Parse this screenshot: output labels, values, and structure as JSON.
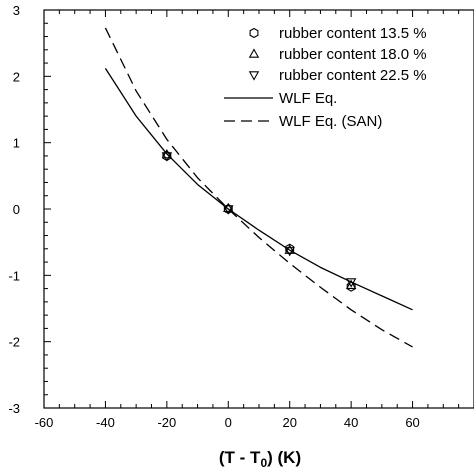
{
  "chart_data": {
    "type": "scatter",
    "title": "",
    "xlabel": "(T - T",
    "xlabel_sub": "0",
    "xlabel_suffix": ") (K)",
    "ylabel": "",
    "xlim": [
      -60,
      80
    ],
    "ylim": [
      -3,
      3
    ],
    "xticks": [
      -60,
      -40,
      -20,
      0,
      20,
      40,
      60
    ],
    "yticks": [
      -3,
      -2,
      -1,
      0,
      1,
      2,
      3
    ],
    "grid": false,
    "legend_position": "top-right",
    "series": [
      {
        "name": "rubber content 13.5 %",
        "kind": "points",
        "marker": "hexagon",
        "x": [
          -20,
          0,
          20,
          40
        ],
        "y": [
          0.8,
          0.0,
          -0.6,
          -1.17
        ]
      },
      {
        "name": "rubber content 18.0 %",
        "kind": "points",
        "marker": "triangle-up",
        "x": [
          -20,
          0,
          20,
          40
        ],
        "y": [
          0.82,
          0.01,
          -0.62,
          -1.15
        ]
      },
      {
        "name": "rubber content 22.5 %",
        "kind": "points",
        "marker": "triangle-down",
        "x": [
          -20,
          0,
          20,
          40
        ],
        "y": [
          0.8,
          0.0,
          -0.63,
          -1.1
        ]
      },
      {
        "name": "WLF Eq.",
        "kind": "line",
        "style": "solid",
        "x": [
          -40,
          -30,
          -20,
          -10,
          0,
          10,
          20,
          30,
          40,
          50,
          60
        ],
        "y": [
          2.12,
          1.4,
          0.83,
          0.37,
          0.0,
          -0.32,
          -0.62,
          -0.88,
          -1.1,
          -1.31,
          -1.52
        ]
      },
      {
        "name": "WLF Eq. (SAN)",
        "kind": "line",
        "style": "dashed",
        "x": [
          -40,
          -30,
          -20,
          -10,
          0,
          10,
          20,
          30,
          40,
          50,
          60
        ],
        "y": [
          2.73,
          1.78,
          1.05,
          0.47,
          0.0,
          -0.43,
          -0.82,
          -1.18,
          -1.52,
          -1.82,
          -2.08
        ]
      }
    ]
  }
}
